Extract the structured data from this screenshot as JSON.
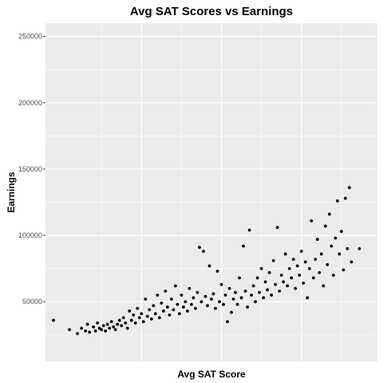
{
  "chart_data": {
    "type": "scatter",
    "title": "Avg SAT Scores vs Earnings",
    "xlabel": "Avg SAT Score",
    "ylabel": "Earnings",
    "xlim": [
      760,
      1590
    ],
    "ylim": [
      5000,
      260000
    ],
    "y_ticks": [
      50000,
      100000,
      150000,
      200000,
      250000
    ],
    "y_tick_labels": [
      "50000",
      "100000",
      "150000",
      "200000",
      "250000"
    ],
    "x_ticks": [
      1000,
      1200,
      1400
    ],
    "x_tick_labels": [],
    "grid": true,
    "point_color": "#000000",
    "panel_bg": "#ebebeb",
    "grid_color": "#ffffff",
    "series": [
      {
        "points": [
          [
            780,
            36000
          ],
          [
            820,
            29000
          ],
          [
            840,
            26000
          ],
          [
            850,
            30000
          ],
          [
            860,
            28000
          ],
          [
            865,
            33000
          ],
          [
            870,
            27000
          ],
          [
            880,
            31000
          ],
          [
            885,
            28000
          ],
          [
            890,
            34000
          ],
          [
            895,
            30000
          ],
          [
            900,
            29000
          ],
          [
            905,
            32000
          ],
          [
            910,
            28000
          ],
          [
            915,
            33000
          ],
          [
            920,
            30000
          ],
          [
            925,
            35000
          ],
          [
            930,
            31000
          ],
          [
            935,
            29000
          ],
          [
            940,
            33000
          ],
          [
            945,
            36000
          ],
          [
            950,
            32000
          ],
          [
            955,
            38000
          ],
          [
            960,
            34000
          ],
          [
            965,
            30000
          ],
          [
            970,
            43000
          ],
          [
            975,
            36000
          ],
          [
            980,
            40000
          ],
          [
            985,
            34000
          ],
          [
            990,
            45000
          ],
          [
            995,
            38000
          ],
          [
            1000,
            41000
          ],
          [
            1005,
            35000
          ],
          [
            1010,
            52000
          ],
          [
            1015,
            39000
          ],
          [
            1020,
            44000
          ],
          [
            1025,
            37000
          ],
          [
            1030,
            47000
          ],
          [
            1035,
            41000
          ],
          [
            1040,
            55000
          ],
          [
            1045,
            38000
          ],
          [
            1050,
            49000
          ],
          [
            1055,
            43000
          ],
          [
            1060,
            58000
          ],
          [
            1065,
            46000
          ],
          [
            1070,
            40000
          ],
          [
            1075,
            52000
          ],
          [
            1080,
            44000
          ],
          [
            1085,
            62000
          ],
          [
            1090,
            48000
          ],
          [
            1095,
            41000
          ],
          [
            1100,
            55000
          ],
          [
            1105,
            46000
          ],
          [
            1110,
            50000
          ],
          [
            1115,
            43000
          ],
          [
            1120,
            60000
          ],
          [
            1125,
            48000
          ],
          [
            1130,
            53000
          ],
          [
            1135,
            45000
          ],
          [
            1140,
            57000
          ],
          [
            1145,
            91000
          ],
          [
            1150,
            50000
          ],
          [
            1155,
            88000
          ],
          [
            1160,
            54000
          ],
          [
            1165,
            47000
          ],
          [
            1170,
            77000
          ],
          [
            1175,
            52000
          ],
          [
            1180,
            56000
          ],
          [
            1185,
            45000
          ],
          [
            1190,
            73000
          ],
          [
            1195,
            50000
          ],
          [
            1200,
            63000
          ],
          [
            1205,
            48000
          ],
          [
            1210,
            55000
          ],
          [
            1215,
            35000
          ],
          [
            1220,
            60000
          ],
          [
            1225,
            42000
          ],
          [
            1230,
            52000
          ],
          [
            1235,
            57000
          ],
          [
            1240,
            48000
          ],
          [
            1245,
            68000
          ],
          [
            1250,
            53000
          ],
          [
            1255,
            92000
          ],
          [
            1260,
            58000
          ],
          [
            1265,
            46000
          ],
          [
            1270,
            104000
          ],
          [
            1275,
            55000
          ],
          [
            1280,
            62000
          ],
          [
            1285,
            50000
          ],
          [
            1290,
            68000
          ],
          [
            1295,
            57000
          ],
          [
            1300,
            75000
          ],
          [
            1305,
            53000
          ],
          [
            1310,
            65000
          ],
          [
            1315,
            59000
          ],
          [
            1320,
            72000
          ],
          [
            1325,
            55000
          ],
          [
            1330,
            81000
          ],
          [
            1335,
            63000
          ],
          [
            1340,
            106000
          ],
          [
            1345,
            58000
          ],
          [
            1350,
            70000
          ],
          [
            1355,
            65000
          ],
          [
            1360,
            86000
          ],
          [
            1365,
            62000
          ],
          [
            1370,
            75000
          ],
          [
            1375,
            68000
          ],
          [
            1380,
            82000
          ],
          [
            1385,
            60000
          ],
          [
            1390,
            77000
          ],
          [
            1395,
            70000
          ],
          [
            1400,
            88000
          ],
          [
            1405,
            64000
          ],
          [
            1410,
            80000
          ],
          [
            1415,
            53000
          ],
          [
            1420,
            75000
          ],
          [
            1425,
            111000
          ],
          [
            1430,
            68000
          ],
          [
            1435,
            82000
          ],
          [
            1440,
            97000
          ],
          [
            1445,
            72000
          ],
          [
            1450,
            86000
          ],
          [
            1455,
            62000
          ],
          [
            1460,
            107000
          ],
          [
            1465,
            78000
          ],
          [
            1470,
            116000
          ],
          [
            1475,
            92000
          ],
          [
            1480,
            70000
          ],
          [
            1485,
            98000
          ],
          [
            1490,
            126000
          ],
          [
            1495,
            86000
          ],
          [
            1500,
            103000
          ],
          [
            1505,
            74000
          ],
          [
            1510,
            128000
          ],
          [
            1515,
            90000
          ],
          [
            1520,
            136000
          ],
          [
            1525,
            80000
          ],
          [
            1545,
            90000
          ]
        ]
      }
    ]
  }
}
